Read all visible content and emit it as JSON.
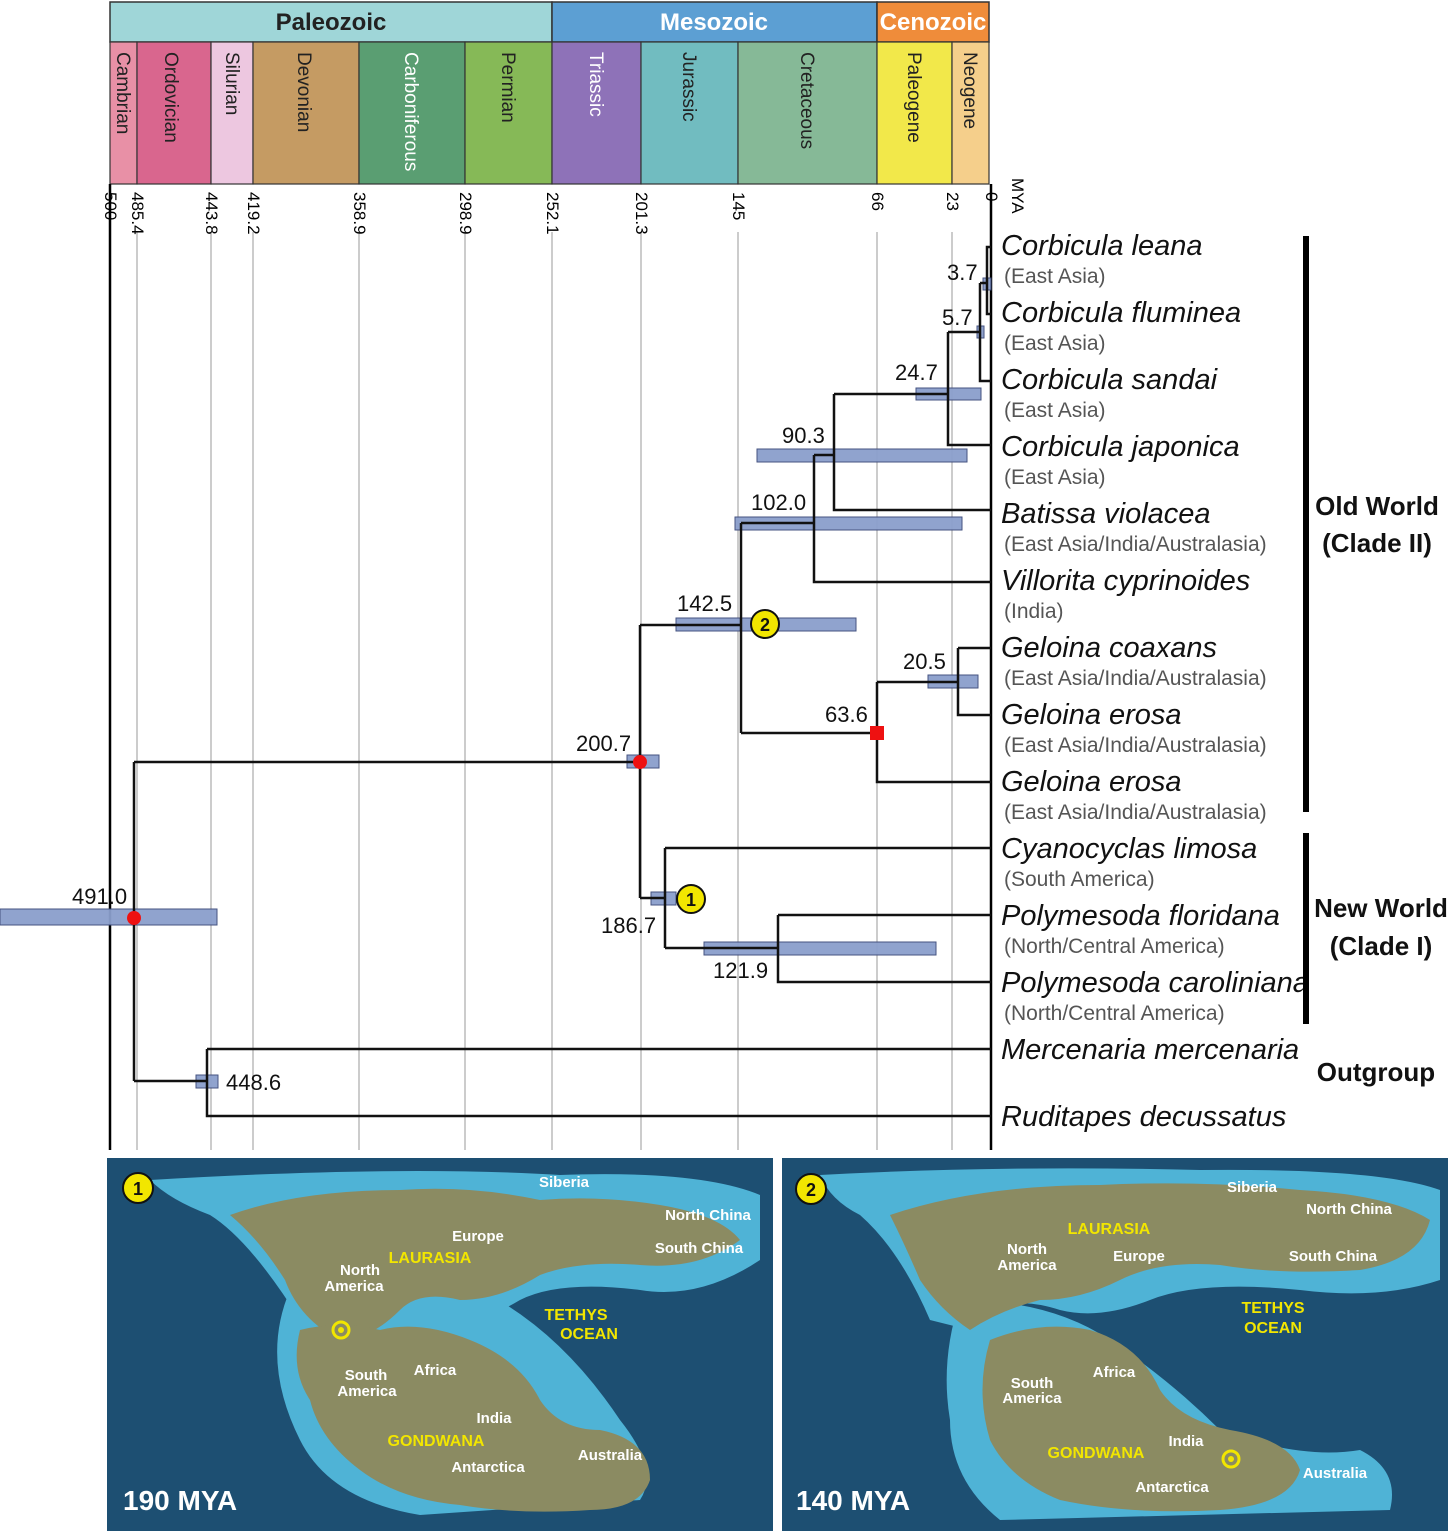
{
  "eras": [
    {
      "label": "Paleozoic",
      "color": "#9fd6d8"
    },
    {
      "label": "Mesozoic",
      "color": "#5c9fd3"
    },
    {
      "label": "Cenozoic",
      "color": "#ef8c3a"
    }
  ],
  "periods": [
    {
      "label": "Cambrian",
      "color": "#e890a6"
    },
    {
      "label": "Ordovician",
      "color": "#d9668e"
    },
    {
      "label": "Silurian",
      "color": "#edc7e0"
    },
    {
      "label": "Devonian",
      "color": "#c59b63"
    },
    {
      "label": "Carboniferous",
      "color": "#5a9e72"
    },
    {
      "label": "Permian",
      "color": "#86b957"
    },
    {
      "label": "Triassic",
      "color": "#8e72b8"
    },
    {
      "label": "Jurassic",
      "color": "#71bcc0"
    },
    {
      "label": "Cretaceous",
      "color": "#86b997"
    },
    {
      "label": "Paleogene",
      "color": "#f2e84a"
    },
    {
      "label": "Neogene",
      "color": "#f5cf8b"
    }
  ],
  "axis": {
    "unit": "MYA",
    "ticks": [
      "500",
      "485.4",
      "443.8",
      "419.2",
      "358.9",
      "298.9",
      "252.1",
      "201.3",
      "145",
      "66",
      "23",
      "0"
    ]
  },
  "taxa": [
    {
      "name": "Corbicula leana",
      "region": "(East Asia)"
    },
    {
      "name": "Corbicula fluminea",
      "region": "(East Asia)"
    },
    {
      "name": "Corbicula sandai",
      "region": "(East Asia)"
    },
    {
      "name": "Corbicula japonica",
      "region": "(East Asia)"
    },
    {
      "name": "Batissa violacea",
      "region": "(East Asia/India/Australasia)"
    },
    {
      "name": "Villorita cyprinoides",
      "region": "(India)"
    },
    {
      "name": "Geloina coaxans",
      "region": "(East Asia/India/Australasia)"
    },
    {
      "name": "Geloina erosa",
      "region": "(East Asia/India/Australasia)"
    },
    {
      "name": "Geloina erosa",
      "region": "(East Asia/India/Australasia)"
    },
    {
      "name": "Cyanocyclas limosa",
      "region": "(South America)"
    },
    {
      "name": "Polymesoda floridana",
      "region": "(North/Central America)"
    },
    {
      "name": "Polymesoda caroliniana",
      "region": "(North/Central America)"
    },
    {
      "name": "Mercenaria mercenaria",
      "region": ""
    },
    {
      "name": "Ruditapes decussatus",
      "region": ""
    }
  ],
  "node_ages": [
    "3.7",
    "5.7",
    "24.7",
    "90.3",
    "102.0",
    "142.5",
    "20.5",
    "63.6",
    "200.7",
    "186.7",
    "121.9",
    "491.0",
    "448.6"
  ],
  "clades": {
    "old_world": [
      "Old World",
      "(Clade II)"
    ],
    "new_world": [
      "New World",
      "(Clade I)"
    ],
    "outgroup": "Outgroup"
  },
  "markers": [
    "1",
    "2"
  ],
  "maps": [
    {
      "badge": "1",
      "title": "190 MYA",
      "white_labels": [
        "Siberia",
        "North China",
        "South China",
        "Europe",
        "North",
        "America",
        "South",
        "America",
        "Africa",
        "India",
        "Antarctica",
        "Australia"
      ],
      "yellow_labels": [
        "LAURASIA",
        "TETHYS",
        "OCEAN",
        "GONDWANA"
      ]
    },
    {
      "badge": "2",
      "title": "140 MYA",
      "white_labels": [
        "Siberia",
        "North China",
        "South China",
        "Europe",
        "North",
        "America",
        "South",
        "America",
        "Africa",
        "India",
        "Antarctica",
        "Australia"
      ],
      "yellow_labels": [
        "LAURASIA",
        "TETHYS",
        "OCEAN",
        "GONDWANA"
      ]
    }
  ],
  "colors": {
    "hpd_bar": "#8b9fcc",
    "red_node": "#ee1111",
    "marker_fill": "#f2e600",
    "ocean_deep": "#1d4f72",
    "ocean_shallow": "#4fb3d6",
    "land": "#8b8b62"
  }
}
